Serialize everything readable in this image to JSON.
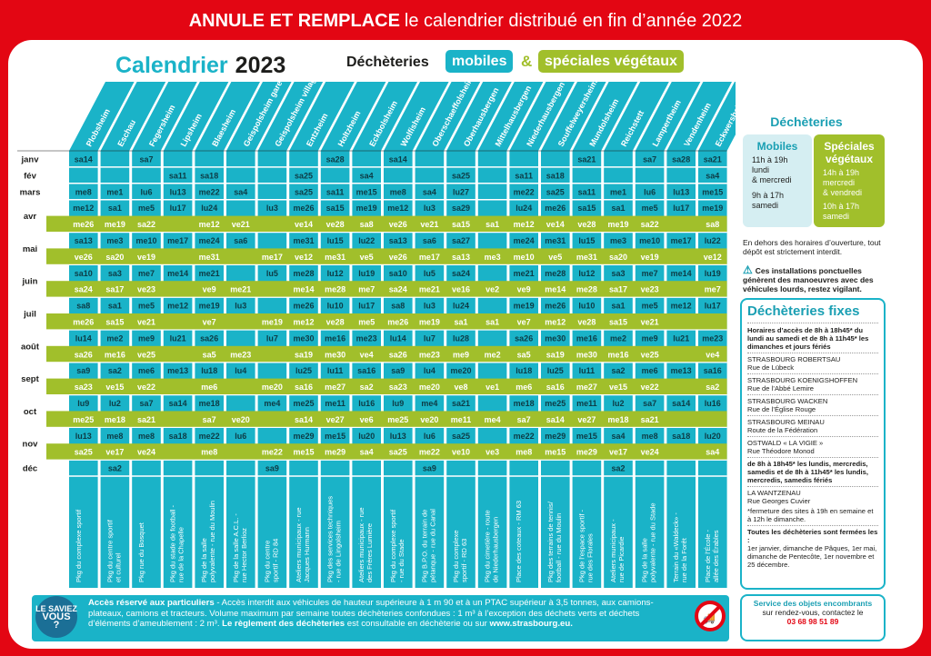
{
  "banner": {
    "bold": "ANNULE ET REMPLACE",
    "rest": "le calendrier distribué en fin d’année 2022"
  },
  "header": {
    "title": "Calendrier",
    "year": "2023",
    "dech": "Déchèteries",
    "mobiles": "mobiles",
    "amp": "&",
    "vegetaux": "spéciales végétaux"
  },
  "colors": {
    "teal": "#1ab3c8",
    "green": "#a1bf2b",
    "paleTeal": "#d5eef2",
    "paleGreen": "#e7efc8",
    "red": "#e30613"
  },
  "columns": [
    {
      "name": "Plobsheim",
      "loc": "Pkg du complexe sportif"
    },
    {
      "name": "Eschau",
      "loc": "Pkg du centre sportif et culturel"
    },
    {
      "name": "Fegersheim",
      "loc": "Pkg rue du Bosquet"
    },
    {
      "name": "Lipsheim",
      "loc": "Pkg du stade de football - rue de la Chapelle"
    },
    {
      "name": "Blaesheim",
      "loc": "Pkg de la salle polyvalente - rue du Moulin"
    },
    {
      "name": "Geispolsheim gare",
      "loc": "Pkg de la salle A.C.L. - rue Hector Berlioz"
    },
    {
      "name": "Geispolsheim village",
      "loc": "Pkg du centre sportif - RD 84"
    },
    {
      "name": "Entzheim",
      "loc": "Ateliers municipaux - rue Jacques Hurmann"
    },
    {
      "name": "Holtzheim",
      "loc": "Pkg des services techniques - rue de Lingolsheim"
    },
    {
      "name": "Eckbolsheim",
      "loc": "Ateliers municipaux - rue des Frères Lumière"
    },
    {
      "name": "Wolfisheim",
      "loc": "Pkg du complexe sportif - rue du Stade"
    },
    {
      "name": "Oberschaeffolsheim",
      "loc": "Pkg B.P.O. du terrain de pétanque - rue du Canal"
    },
    {
      "name": "Oberhausbergen",
      "loc": "Pkg du complexe sportif - RD 63"
    },
    {
      "name": "Mittelhausbergen",
      "loc": "Pkg du cimetière - route de Niederhausbergen"
    },
    {
      "name": "Niederhausbergen",
      "loc": "Place des coteaux - RM 63"
    },
    {
      "name": "Souffelweyersheim",
      "loc": "Pkg des terrains de tennis/ football - rue du Moulin"
    },
    {
      "name": "Mundolsheim",
      "loc": "Pkg de l’espace sportif - rue des Florales"
    },
    {
      "name": "Reichstett",
      "loc": "Ateliers municipaux - rue de Picardie"
    },
    {
      "name": "Lampertheim",
      "loc": "Pkg de la salle polyvalente - rue du Stade"
    },
    {
      "name": "Vendenheim",
      "loc": "Terrain du «Waldeck» - rue de la Forêt"
    },
    {
      "name": "Eckwersheim",
      "loc": "Place de l’École - allée des Érables"
    }
  ],
  "months": [
    {
      "label": "janv",
      "rows": [
        [
          "sa14",
          "",
          "sa7",
          "",
          "",
          "",
          "",
          "",
          "sa28",
          "",
          "sa14",
          "",
          "",
          "",
          "",
          "",
          "sa21",
          "",
          "sa7",
          "sa28",
          "sa21"
        ]
      ]
    },
    {
      "label": "fév",
      "rows": [
        [
          "",
          "",
          "",
          "sa11",
          "sa18",
          "",
          "",
          "sa25",
          "",
          "sa4",
          "",
          "",
          "sa25",
          "",
          "sa11",
          "sa18",
          "",
          "",
          "",
          "",
          "sa4"
        ]
      ]
    },
    {
      "label": "mars",
      "rows": [
        [
          "me8",
          "me1",
          "lu6",
          "lu13",
          "me22",
          "sa4",
          "",
          "sa25",
          "sa11",
          "me15",
          "me8",
          "sa4",
          "lu27",
          "",
          "me22",
          "sa25",
          "sa11",
          "me1",
          "lu6",
          "lu13",
          "me15"
        ]
      ]
    },
    {
      "label": "avr",
      "rows": [
        [
          "me12",
          "sa1",
          "me5",
          "lu17",
          "lu24",
          "",
          "lu3",
          "me26",
          "sa15",
          "me19",
          "me12",
          "lu3",
          "sa29",
          "",
          "lu24",
          "me26",
          "sa15",
          "sa1",
          "me5",
          "lu17",
          "me19"
        ],
        [
          "me26",
          "me19",
          "sa22",
          "",
          "me12",
          "ve21",
          "",
          "ve14",
          "ve28",
          "sa8",
          "ve26",
          "ve21",
          "sa15",
          "sa1",
          "me12",
          "ve14",
          "ve28",
          "me19",
          "sa22",
          "",
          "sa8"
        ]
      ]
    },
    {
      "label": "mai",
      "rows": [
        [
          "sa13",
          "me3",
          "me10",
          "me17",
          "me24",
          "sa6",
          "",
          "me31",
          "lu15",
          "lu22",
          "sa13",
          "sa6",
          "sa27",
          "",
          "me24",
          "me31",
          "lu15",
          "me3",
          "me10",
          "me17",
          "lu22"
        ],
        [
          "ve26",
          "sa20",
          "ve19",
          "",
          "me31",
          "",
          "me17",
          "ve12",
          "me31",
          "ve5",
          "ve26",
          "me17",
          "sa13",
          "me3",
          "me10",
          "ve5",
          "me31",
          "sa20",
          "ve19",
          "",
          "ve12"
        ]
      ]
    },
    {
      "label": "juin",
      "rows": [
        [
          "sa10",
          "sa3",
          "me7",
          "me14",
          "me21",
          "",
          "lu5",
          "me28",
          "lu12",
          "lu19",
          "sa10",
          "lu5",
          "sa24",
          "",
          "me21",
          "me28",
          "lu12",
          "sa3",
          "me7",
          "me14",
          "lu19"
        ],
        [
          "sa24",
          "sa17",
          "ve23",
          "",
          "ve9",
          "me21",
          "",
          "me14",
          "me28",
          "me7",
          "sa24",
          "me21",
          "ve16",
          "ve2",
          "ve9",
          "me14",
          "me28",
          "sa17",
          "ve23",
          "",
          "me7"
        ]
      ]
    },
    {
      "label": "juil",
      "rows": [
        [
          "sa8",
          "sa1",
          "me5",
          "me12",
          "me19",
          "lu3",
          "",
          "me26",
          "lu10",
          "lu17",
          "sa8",
          "lu3",
          "lu24",
          "",
          "me19",
          "me26",
          "lu10",
          "sa1",
          "me5",
          "me12",
          "lu17"
        ],
        [
          "me26",
          "sa15",
          "ve21",
          "",
          "ve7",
          "",
          "me19",
          "me12",
          "ve28",
          "me5",
          "me26",
          "me19",
          "sa1",
          "sa1",
          "ve7",
          "me12",
          "ve28",
          "sa15",
          "ve21",
          "",
          ""
        ]
      ]
    },
    {
      "label": "août",
      "rows": [
        [
          "lu14",
          "me2",
          "me9",
          "lu21",
          "sa26",
          "",
          "lu7",
          "me30",
          "me16",
          "me23",
          "lu14",
          "lu7",
          "lu28",
          "",
          "sa26",
          "me30",
          "me16",
          "me2",
          "me9",
          "lu21",
          "me23"
        ],
        [
          "sa26",
          "me16",
          "ve25",
          "",
          "sa5",
          "me23",
          "",
          "sa19",
          "me30",
          "ve4",
          "sa26",
          "me23",
          "me9",
          "me2",
          "sa5",
          "sa19",
          "me30",
          "me16",
          "ve25",
          "",
          "ve4"
        ]
      ]
    },
    {
      "label": "sept",
      "rows": [
        [
          "sa9",
          "sa2",
          "me6",
          "me13",
          "lu18",
          "lu4",
          "",
          "lu25",
          "lu11",
          "sa16",
          "sa9",
          "lu4",
          "me20",
          "",
          "lu18",
          "lu25",
          "lu11",
          "sa2",
          "me6",
          "me13",
          "sa16"
        ],
        [
          "sa23",
          "ve15",
          "ve22",
          "",
          "me6",
          "",
          "me20",
          "sa16",
          "me27",
          "sa2",
          "sa23",
          "me20",
          "ve8",
          "ve1",
          "me6",
          "sa16",
          "me27",
          "ve15",
          "ve22",
          "",
          "sa2"
        ]
      ]
    },
    {
      "label": "oct",
      "rows": [
        [
          "lu9",
          "lu2",
          "sa7",
          "sa14",
          "me18",
          "",
          "me4",
          "me25",
          "me11",
          "lu16",
          "lu9",
          "me4",
          "sa21",
          "",
          "me18",
          "me25",
          "me11",
          "lu2",
          "sa7",
          "sa14",
          "lu16"
        ],
        [
          "me25",
          "me18",
          "sa21",
          "",
          "sa7",
          "ve20",
          "",
          "sa14",
          "ve27",
          "ve6",
          "me25",
          "ve20",
          "me11",
          "me4",
          "sa7",
          "sa14",
          "ve27",
          "me18",
          "sa21",
          "",
          ""
        ]
      ]
    },
    {
      "label": "nov",
      "rows": [
        [
          "lu13",
          "me8",
          "me8",
          "sa18",
          "me22",
          "lu6",
          "",
          "me29",
          "me15",
          "lu20",
          "lu13",
          "lu6",
          "sa25",
          "",
          "me22",
          "me29",
          "me15",
          "sa4",
          "me8",
          "sa18",
          "lu20"
        ],
        [
          "sa25",
          "ve17",
          "ve24",
          "",
          "me8",
          "",
          "me22",
          "me15",
          "me29",
          "sa4",
          "sa25",
          "me22",
          "ve10",
          "ve3",
          "me8",
          "me15",
          "me29",
          "ve17",
          "ve24",
          "",
          "sa4"
        ]
      ]
    },
    {
      "label": "déc",
      "rows": [
        [
          "",
          "sa2",
          "",
          "",
          "",
          "",
          "sa9",
          "",
          "",
          "",
          "",
          "sa9",
          "",
          "",
          "",
          "",
          "",
          "sa2",
          "",
          "",
          ""
        ]
      ]
    }
  ],
  "side": {
    "title": "Déchèteries",
    "mob_title": "Mobiles",
    "mob_l1": "11h à 19h",
    "mob_l2": "lundi",
    "mob_l3": "& mercredi",
    "mob_l4": "9h à 17h",
    "mob_l5": "samedi",
    "veg_title": "Spéciales végétaux",
    "veg_l1": "14h à 19h",
    "veg_l2": "mercredi",
    "veg_l3": "& vendredi",
    "veg_l4": "10h à 17h",
    "veg_l5": "samedi",
    "note": "En dehors des horaires d’ouverture, tout dépôt est strictement interdit.",
    "warn": "Ces installations ponctuelles génèrent des manoeuvres avec des véhicules lourds, restez vigilant."
  },
  "fixes": {
    "title": "Déchèteries fixes",
    "hours": "Horaires d’accès de 8h à 18h45* du lundi au samedi et de 8h à 11h45* les dimanches et jours fériés",
    "s1": "STRASBOURG ROBERTSAU",
    "s1a": "Rue de Lübeck",
    "s2": "STRASBOURG KOENIGSHOFFEN",
    "s2a": "Rue de l’Abbé Lemire",
    "s3": "STRASBOURG WACKEN",
    "s3a": "Rue de l’Église Rouge",
    "s4": "STRASBOURG MEINAU",
    "s4a": "Route de la Fédération",
    "s5": "OSTWALD « LA VIGIE »",
    "s5a": "Rue Théodore Monod",
    "hours2": "de 8h à 18h45* les lundis, mercredis, samedis et de 8h à 11h45* les lundis, mercredis, samedis fériés",
    "s6": "LA WANTZENAU",
    "s6a": "Rue Georges Cuvier",
    "star": "*fermeture des sites à 19h en semaine et à 12h le dimanche.",
    "closed": "Toutes les déchèteries sont fermées les :",
    "closed2": "1er janvier, dimanche de Pâques, 1er mai, dimanche de Pentecôte, 1er novembre et 25 décembre."
  },
  "objets": {
    "title": "Service des objets encombrants",
    "l1": "sur rendez-vous, contactez le",
    "tel": "03 68 98 51 89"
  },
  "footer": {
    "p1": "Accès réservé aux particuliers",
    "p2": " - Accès interdit aux véhicules de hauteur supérieure à 1 m 90 et à un PTAC supérieur à 3,5 tonnes, aux camions-plateaux, camions et tracteurs. Volume maximum par semaine toutes déchèteries confondues : 1 m³ à l’exception des déchets verts et déchets d’éléments d’ameublement : 2 m³. ",
    "p3": "Le règlement des déchèteries",
    "p4": " est consultable en déchèterie ou sur ",
    "p5": "www.strasbourg.eu."
  },
  "saviez": {
    "l1": "LE SAVIEZ",
    "l2": "VOUS",
    "l3": "?"
  }
}
